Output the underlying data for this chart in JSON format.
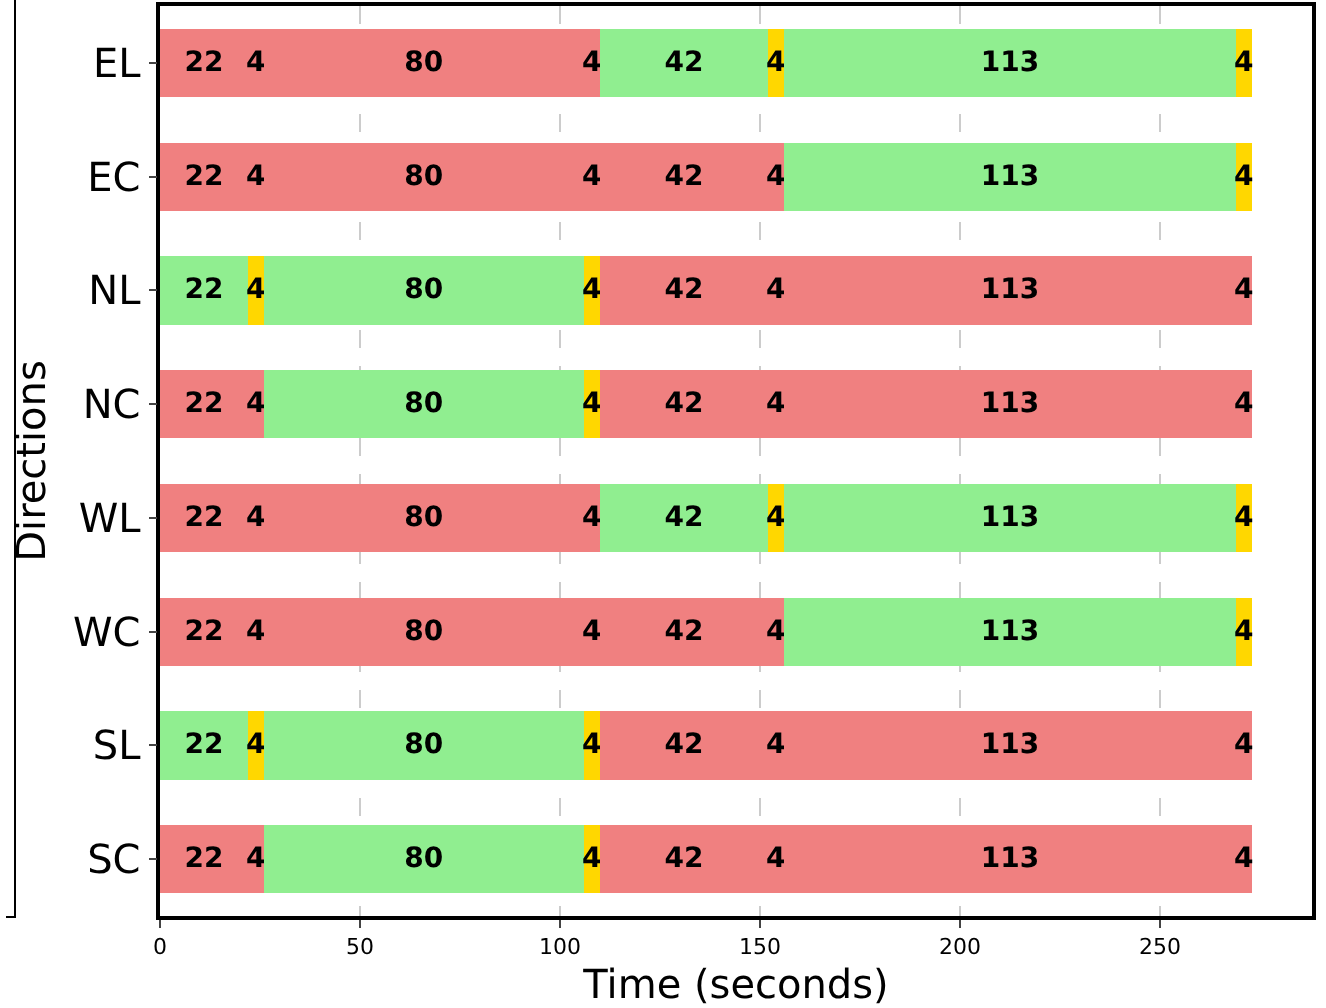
{
  "chart_data": {
    "type": "bar",
    "orientation": "horizontal",
    "stacked": true,
    "xlabel": "Time (seconds)",
    "ylabel": "Directions",
    "categories": [
      "EL",
      "EC",
      "NL",
      "NC",
      "WL",
      "WC",
      "SL",
      "SC"
    ],
    "series": [
      {
        "colors": [
          "#f08080",
          "#f08080",
          "#90ee90",
          "#f08080",
          "#f08080",
          "#f08080",
          "#90ee90",
          "#f08080"
        ],
        "values": [
          22,
          22,
          22,
          22,
          22,
          22,
          22,
          22
        ]
      },
      {
        "colors": [
          "#f08080",
          "#f08080",
          "#ffd700",
          "#f08080",
          "#f08080",
          "#f08080",
          "#ffd700",
          "#f08080"
        ],
        "values": [
          4,
          4,
          4,
          4,
          4,
          4,
          4,
          4
        ]
      },
      {
        "colors": [
          "#f08080",
          "#f08080",
          "#90ee90",
          "#90ee90",
          "#f08080",
          "#f08080",
          "#90ee90",
          "#90ee90"
        ],
        "values": [
          80,
          80,
          80,
          80,
          80,
          80,
          80,
          80
        ]
      },
      {
        "colors": [
          "#f08080",
          "#f08080",
          "#ffd700",
          "#ffd700",
          "#f08080",
          "#f08080",
          "#ffd700",
          "#ffd700"
        ],
        "values": [
          4,
          4,
          4,
          4,
          4,
          4,
          4,
          4
        ]
      },
      {
        "colors": [
          "#90ee90",
          "#f08080",
          "#f08080",
          "#f08080",
          "#90ee90",
          "#f08080",
          "#f08080",
          "#f08080"
        ],
        "values": [
          42,
          42,
          42,
          42,
          42,
          42,
          42,
          42
        ]
      },
      {
        "colors": [
          "#ffd700",
          "#f08080",
          "#f08080",
          "#f08080",
          "#ffd700",
          "#f08080",
          "#f08080",
          "#f08080"
        ],
        "values": [
          4,
          4,
          4,
          4,
          4,
          4,
          4,
          4
        ]
      },
      {
        "colors": [
          "#90ee90",
          "#90ee90",
          "#f08080",
          "#f08080",
          "#90ee90",
          "#90ee90",
          "#f08080",
          "#f08080"
        ],
        "values": [
          113,
          113,
          113,
          113,
          113,
          113,
          113,
          113
        ]
      },
      {
        "colors": [
          "#ffd700",
          "#ffd700",
          "#f08080",
          "#f08080",
          "#ffd700",
          "#ffd700",
          "#f08080",
          "#f08080"
        ],
        "values": [
          4,
          4,
          4,
          4,
          4,
          4,
          4,
          4
        ]
      }
    ],
    "xlim": [
      0,
      288
    ],
    "xticks": [
      0,
      50,
      100,
      150,
      200,
      250
    ],
    "grid": "x",
    "data_labels": true
  }
}
